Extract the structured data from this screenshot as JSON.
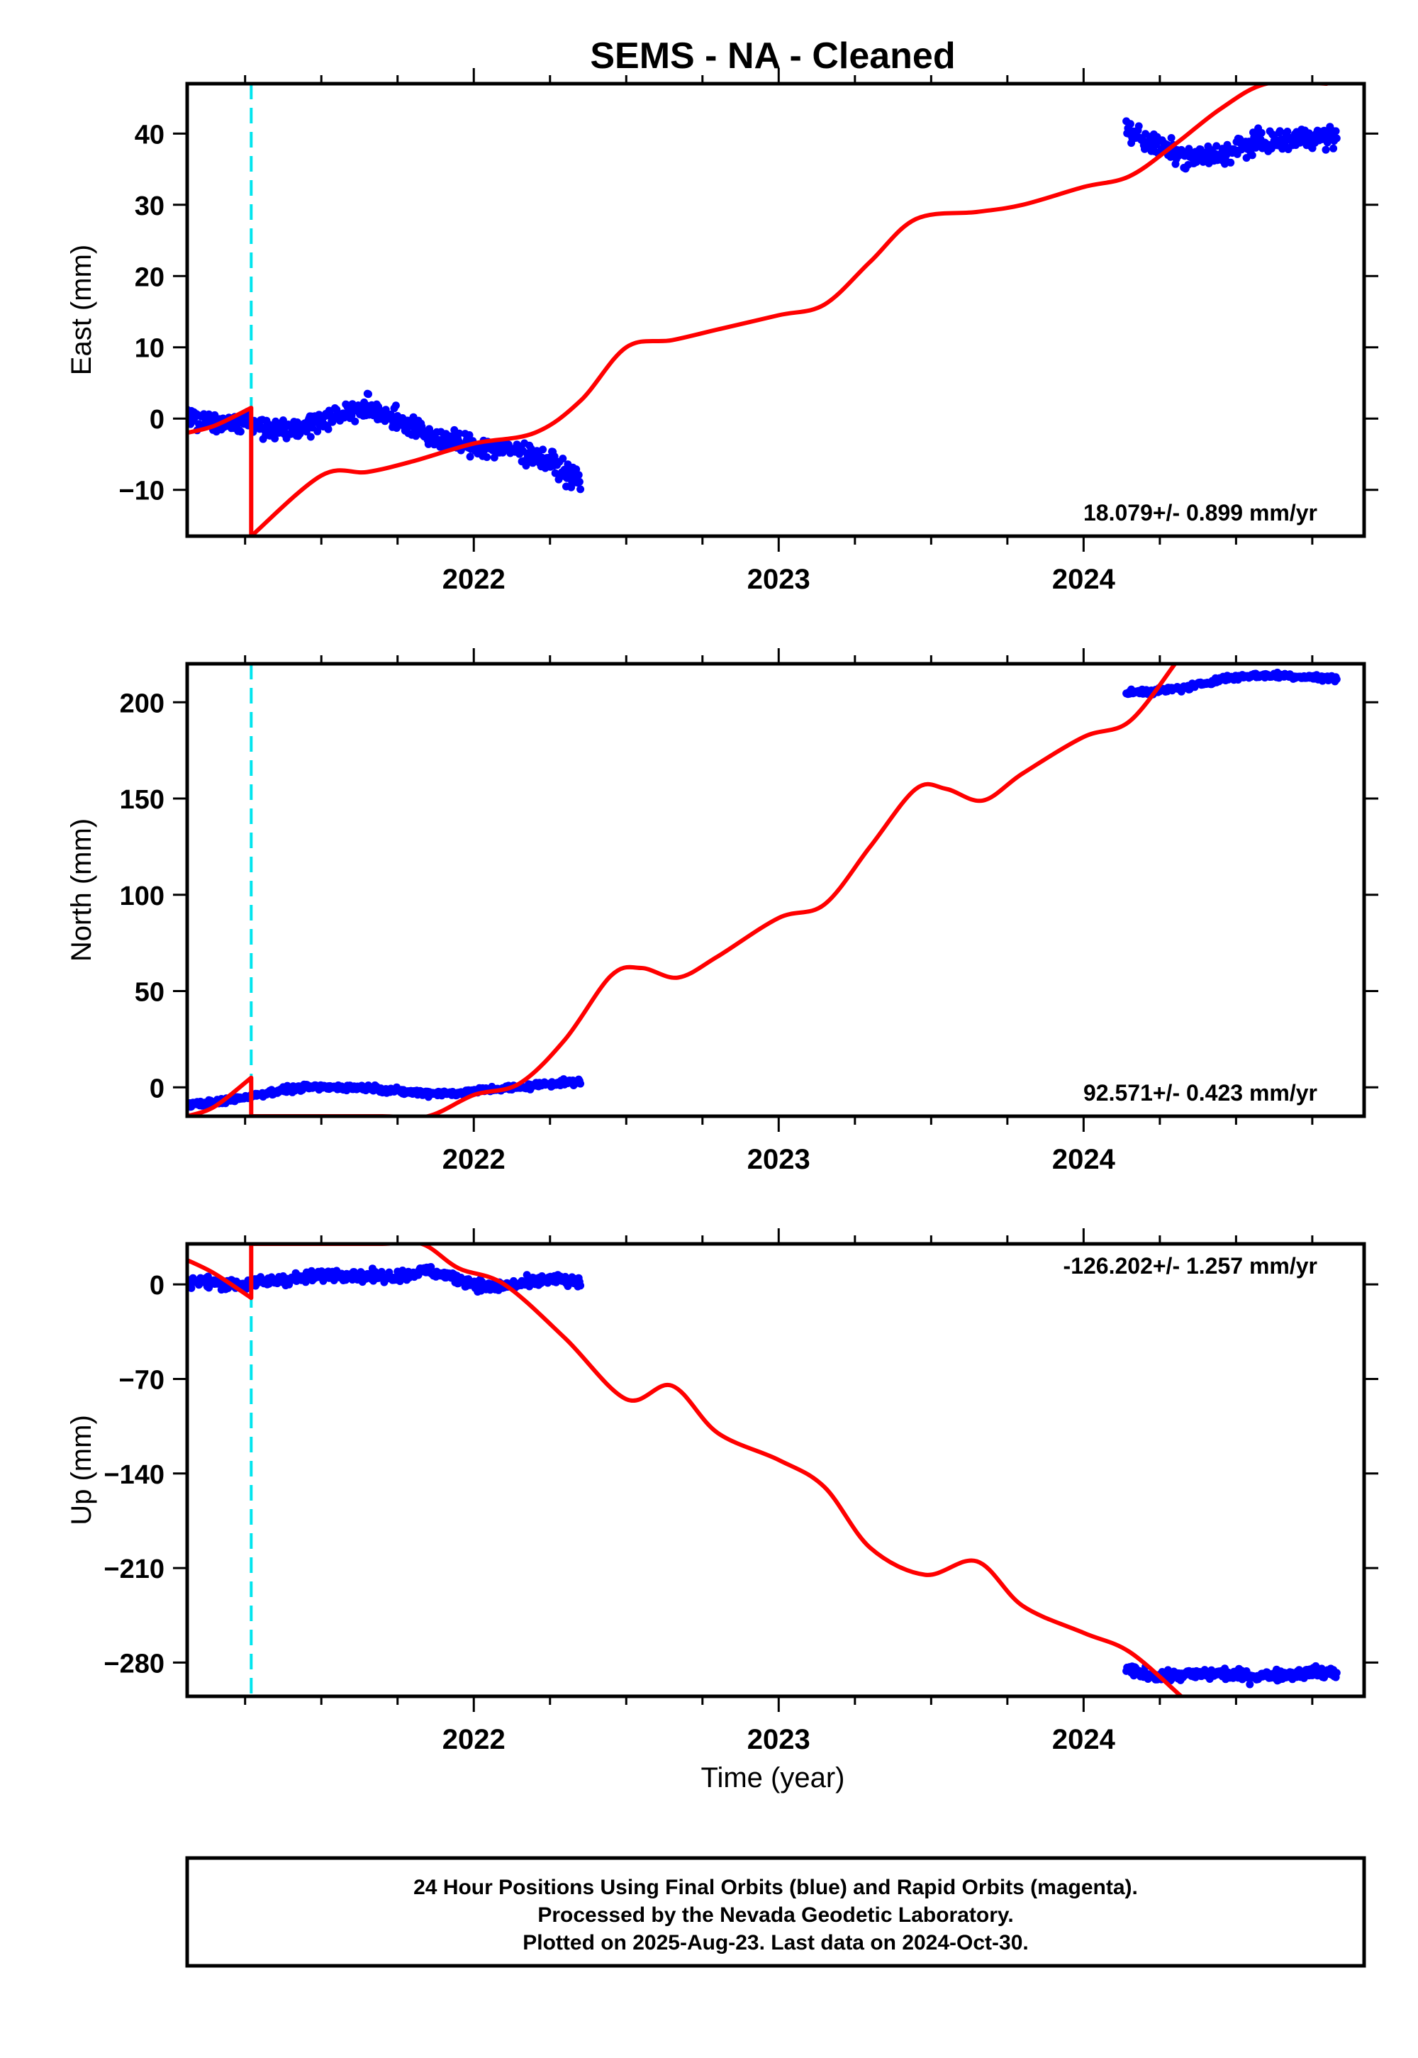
{
  "title": "SEMS  - NA - Cleaned",
  "xlabel": "Time (year)",
  "footer": {
    "line1": "24 Hour Positions Using Final Orbits (blue) and Rapid Orbits (magenta).",
    "line2": "Processed by the Nevada Geodetic Laboratory.",
    "line3": "Plotted on 2025-Aug-23. Last data on 2024-Oct-30."
  },
  "colors": {
    "final_orbit_points": "#0000ff",
    "model_fit": "#ff0000",
    "equipment_change": "#00e5ee",
    "frame": "#000000"
  },
  "chart_data": [
    {
      "type": "scatter",
      "panel": "east",
      "ylabel": "East (mm)",
      "xlim": [
        2021.06,
        2024.92
      ],
      "ylim": [
        -16.5,
        47
      ],
      "x_ticks": [
        2022,
        2023,
        2024
      ],
      "y_ticks": [
        -10,
        0,
        10,
        20,
        30,
        40
      ],
      "rate_label": "18.079+/- 0.899 mm/yr",
      "offset_line_x": 2021.27,
      "data_segments": [
        {
          "x": [
            2021.06,
            2021.15,
            2021.25,
            2021.35,
            2021.45,
            2021.55,
            2021.65,
            2021.75,
            2021.85,
            2021.95,
            2022.05,
            2022.15,
            2022.25,
            2022.35
          ],
          "y": [
            0.5,
            -0.5,
            -0.5,
            -1.5,
            -1.0,
            0.5,
            1.5,
            0.0,
            -2.5,
            -3.5,
            -4.0,
            -4.5,
            -6.0,
            -9.0
          ],
          "scatter": 1.5
        },
        {
          "x": [
            2024.14,
            2024.25,
            2024.35,
            2024.45,
            2024.55,
            2024.65,
            2024.75,
            2024.83
          ],
          "y": [
            40.5,
            38.0,
            36.5,
            37.0,
            38.5,
            39.0,
            39.5,
            39.5
          ],
          "scatter": 1.5
        }
      ],
      "model_fit": {
        "x": [
          2021.06,
          2021.15,
          2021.27,
          2021.27,
          2021.5,
          2021.65,
          2021.8,
          2022.0,
          2022.2,
          2022.35,
          2022.5,
          2022.65,
          2022.8,
          2023.0,
          2023.15,
          2023.3,
          2023.45,
          2023.65,
          2023.8,
          2024.0,
          2024.15,
          2024.3,
          2024.45,
          2024.6,
          2024.8
        ],
        "y": [
          -2.0,
          -1.0,
          1.5,
          -16.5,
          -8.0,
          -7.5,
          -6.0,
          -3.5,
          -2.0,
          2.5,
          10.0,
          11.0,
          12.5,
          14.5,
          16.0,
          22.0,
          28.0,
          29.0,
          30.0,
          32.5,
          34.0,
          38.5,
          43.5,
          47.0,
          47.0
        ]
      }
    },
    {
      "type": "scatter",
      "panel": "north",
      "ylabel": "North (mm)",
      "xlim": [
        2021.06,
        2024.92
      ],
      "ylim": [
        -15,
        220
      ],
      "x_ticks": [
        2022,
        2023,
        2024
      ],
      "y_ticks": [
        0,
        50,
        100,
        150,
        200
      ],
      "rate_label": "92.571+/- 0.423 mm/yr",
      "offset_line_x": 2021.27,
      "data_segments": [
        {
          "x": [
            2021.06,
            2021.15,
            2021.25,
            2021.35,
            2021.45,
            2021.55,
            2021.65,
            2021.75,
            2021.85,
            2021.95,
            2022.05,
            2022.15,
            2022.25,
            2022.35
          ],
          "y": [
            -9.0,
            -8.0,
            -5.0,
            -2.0,
            0.0,
            0.0,
            0.0,
            -2.0,
            -3.0,
            -3.0,
            -1.0,
            0.0,
            2.0,
            3.0
          ],
          "scatter": 1.5
        },
        {
          "x": [
            2024.14,
            2024.25,
            2024.35,
            2024.45,
            2024.55,
            2024.65,
            2024.75,
            2024.83
          ],
          "y": [
            205.0,
            206.0,
            208.0,
            212.0,
            214.0,
            214.0,
            213.0,
            212.0
          ],
          "scatter": 1.5
        }
      ],
      "model_fit": {
        "x": [
          2021.06,
          2021.15,
          2021.27,
          2021.27,
          2021.5,
          2021.7,
          2021.85,
          2022.0,
          2022.15,
          2022.3,
          2022.45,
          2022.55,
          2022.67,
          2022.8,
          2023.0,
          2023.15,
          2023.3,
          2023.45,
          2023.55,
          2023.67,
          2023.8,
          2024.0,
          2024.15,
          2024.3
        ],
        "y": [
          -15.0,
          -10.0,
          5.0,
          -15.0,
          -15.0,
          -15.0,
          -15.0,
          -4.0,
          2.0,
          25.0,
          58.0,
          62.0,
          57.0,
          68.0,
          88.0,
          95.0,
          125.0,
          155.0,
          155.0,
          149.0,
          163.0,
          182.0,
          190.0,
          220.0
        ]
      }
    },
    {
      "type": "scatter",
      "panel": "up",
      "ylabel": "Up (mm)",
      "xlim": [
        2021.06,
        2024.92
      ],
      "ylim": [
        -305,
        30
      ],
      "x_ticks": [
        2022,
        2023,
        2024
      ],
      "y_ticks": [
        0,
        -70,
        -140,
        -210,
        -280
      ],
      "rate_label": "-126.202+/- 1.257 mm/yr",
      "offset_line_x": 2021.27,
      "data_segments": [
        {
          "x": [
            2021.06,
            2021.15,
            2021.25,
            2021.35,
            2021.45,
            2021.55,
            2021.65,
            2021.75,
            2021.85,
            2021.95,
            2022.05,
            2022.15,
            2022.25,
            2022.35
          ],
          "y": [
            3.0,
            1.0,
            0.0,
            3.0,
            5.0,
            8.0,
            6.0,
            6.0,
            10.0,
            4.0,
            -2.0,
            0.0,
            4.0,
            1.0
          ],
          "scatter": 4
        },
        {
          "x": [
            2024.14,
            2024.25,
            2024.35,
            2024.45,
            2024.55,
            2024.65,
            2024.75,
            2024.83
          ],
          "y": [
            -286.0,
            -290.0,
            -289.0,
            -288.0,
            -290.0,
            -289.0,
            -287.0,
            -288.0
          ],
          "scatter": 4
        }
      ],
      "model_fit": {
        "x": [
          2021.06,
          2021.15,
          2021.27,
          2021.27,
          2021.5,
          2021.7,
          2021.83,
          2021.95,
          2022.1,
          2022.3,
          2022.5,
          2022.65,
          2022.8,
          2023.0,
          2023.15,
          2023.3,
          2023.48,
          2023.65,
          2023.8,
          2024.0,
          2024.15,
          2024.32
        ],
        "y": [
          18.0,
          8.0,
          -10.0,
          30.0,
          30.0,
          30.0,
          30.0,
          12.0,
          0.0,
          -40.0,
          -85.0,
          -75.0,
          -110.0,
          -130.0,
          -150.0,
          -195.0,
          -215.0,
          -205.0,
          -238.0,
          -258.0,
          -272.0,
          -305.0
        ]
      }
    }
  ]
}
